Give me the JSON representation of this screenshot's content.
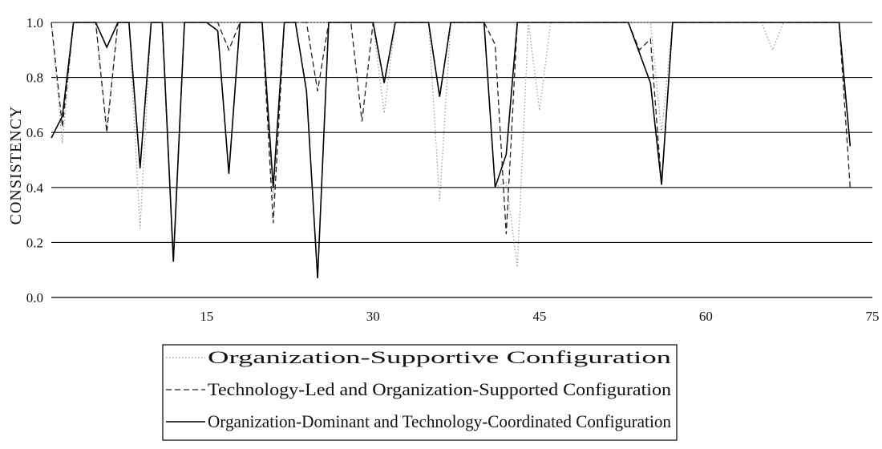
{
  "chart_data": {
    "type": "line",
    "title": "",
    "xlabel": "",
    "ylabel": "CONSISTENCY",
    "xlim": [
      1,
      75
    ],
    "ylim": [
      0,
      1
    ],
    "x_ticks": [
      15,
      30,
      45,
      60,
      75
    ],
    "y_ticks": [
      0.0,
      0.2,
      0.4,
      0.6,
      0.8,
      1.0
    ],
    "y_tick_labels": [
      "0.0",
      "0.2",
      "0.4",
      "0.6",
      "0.8",
      "1.0"
    ],
    "grid": "horizontal",
    "legend_position": "bottom",
    "x": [
      1,
      2,
      3,
      4,
      5,
      6,
      7,
      8,
      9,
      10,
      11,
      12,
      13,
      14,
      15,
      16,
      17,
      18,
      19,
      20,
      21,
      22,
      23,
      24,
      25,
      26,
      27,
      28,
      29,
      30,
      31,
      32,
      33,
      34,
      35,
      36,
      37,
      38,
      39,
      40,
      41,
      42,
      43,
      44,
      45,
      46,
      47,
      48,
      49,
      50,
      51,
      52,
      53,
      54,
      55,
      56,
      57,
      58,
      59,
      60,
      61,
      62,
      63,
      64,
      65,
      66,
      67,
      68,
      69,
      70,
      71,
      72,
      73
    ],
    "series": [
      {
        "name": "Organization-Supportive Configuration",
        "style": "dotted",
        "color": "#999999",
        "values": [
          1.0,
          0.56,
          1.0,
          1.0,
          1.0,
          0.62,
          1.0,
          1.0,
          0.25,
          1.0,
          1.0,
          0.16,
          1.0,
          1.0,
          1.0,
          1.0,
          1.0,
          1.0,
          1.0,
          1.0,
          0.36,
          1.0,
          1.0,
          1.0,
          1.0,
          1.0,
          1.0,
          1.0,
          1.0,
          1.0,
          0.67,
          1.0,
          1.0,
          1.0,
          1.0,
          0.35,
          1.0,
          1.0,
          1.0,
          1.0,
          0.4,
          0.42,
          0.11,
          1.0,
          0.68,
          1.0,
          1.0,
          1.0,
          1.0,
          1.0,
          1.0,
          1.0,
          1.0,
          1.0,
          1.0,
          0.6,
          1.0,
          1.0,
          1.0,
          1.0,
          1.0,
          1.0,
          1.0,
          1.0,
          1.0,
          0.9,
          1.0,
          1.0,
          1.0,
          1.0,
          1.0,
          1.0,
          0.55
        ]
      },
      {
        "name": "Technology-Led and Organization-Supported Configuration",
        "style": "dashed",
        "color": "#222222",
        "values": [
          1.0,
          0.62,
          1.0,
          1.0,
          1.0,
          0.6,
          1.0,
          1.0,
          0.47,
          1.0,
          1.0,
          0.13,
          1.0,
          1.0,
          1.0,
          1.0,
          0.9,
          1.0,
          1.0,
          1.0,
          0.27,
          1.0,
          1.0,
          1.0,
          0.75,
          1.0,
          1.0,
          1.0,
          0.64,
          1.0,
          0.78,
          1.0,
          1.0,
          1.0,
          1.0,
          0.73,
          1.0,
          1.0,
          1.0,
          1.0,
          0.92,
          0.23,
          1.0,
          1.0,
          1.0,
          1.0,
          1.0,
          1.0,
          1.0,
          1.0,
          1.0,
          1.0,
          1.0,
          0.9,
          0.94,
          0.41,
          1.0,
          1.0,
          1.0,
          1.0,
          1.0,
          1.0,
          1.0,
          1.0,
          1.0,
          1.0,
          1.0,
          1.0,
          1.0,
          1.0,
          1.0,
          1.0,
          0.4
        ]
      },
      {
        "name": "Organization-Dominant and Technology-Coordinated Configuration",
        "style": "solid",
        "color": "#000000",
        "values": [
          0.58,
          0.66,
          1.0,
          1.0,
          1.0,
          0.91,
          1.0,
          1.0,
          0.47,
          1.0,
          1.0,
          0.13,
          1.0,
          1.0,
          1.0,
          0.97,
          0.45,
          1.0,
          1.0,
          1.0,
          0.4,
          1.0,
          1.0,
          0.75,
          0.07,
          1.0,
          1.0,
          1.0,
          1.0,
          1.0,
          0.78,
          1.0,
          1.0,
          1.0,
          1.0,
          0.73,
          1.0,
          1.0,
          1.0,
          1.0,
          0.4,
          0.52,
          1.0,
          1.0,
          1.0,
          1.0,
          1.0,
          1.0,
          1.0,
          1.0,
          1.0,
          1.0,
          1.0,
          0.89,
          0.78,
          0.41,
          1.0,
          1.0,
          1.0,
          1.0,
          1.0,
          1.0,
          1.0,
          1.0,
          1.0,
          1.0,
          1.0,
          1.0,
          1.0,
          1.0,
          1.0,
          1.0,
          0.55
        ]
      }
    ]
  }
}
